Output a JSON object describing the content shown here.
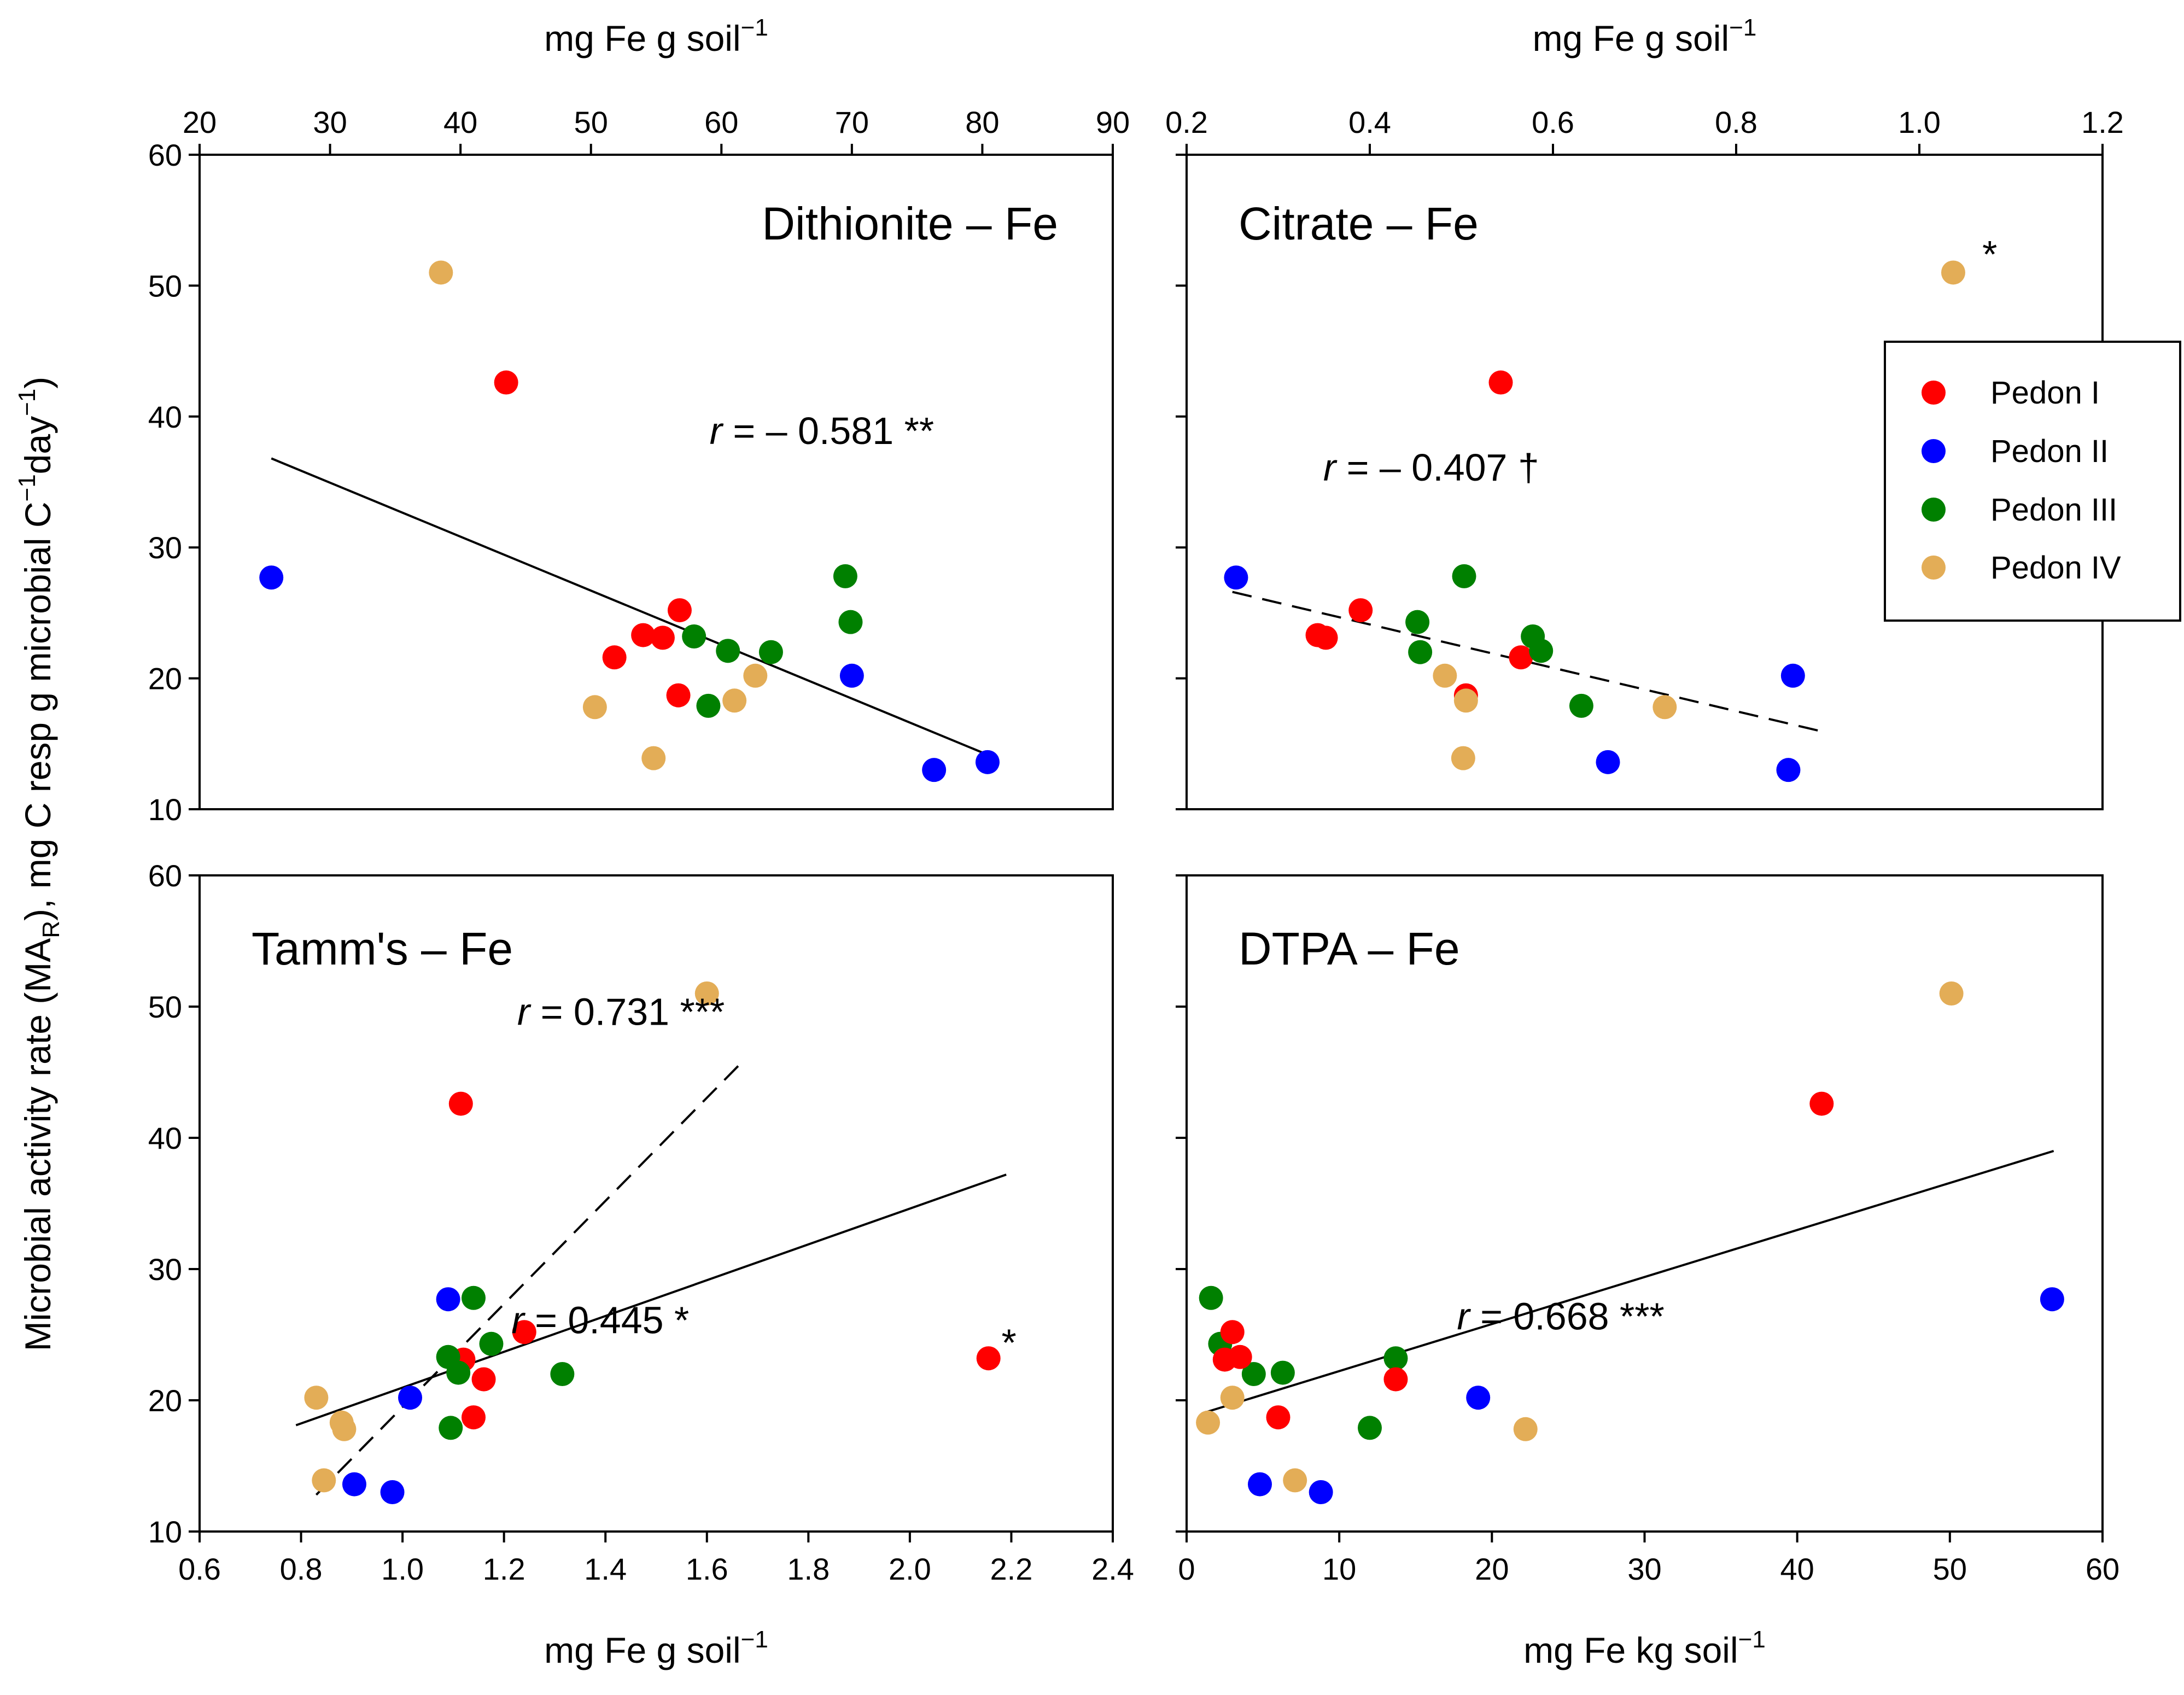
{
  "figure": {
    "y_axis_label": {
      "main": "Microbial activity rate (MA",
      "sub": "R",
      "rest": "), mg C resp g microbial  C",
      "sup1": "−1",
      "rest2": "day",
      "sup2": "−1",
      "end": ")"
    },
    "legend": [
      {
        "label": "Pedon I",
        "color": "#ff0000"
      },
      {
        "label": "Pedon II",
        "color": "#0000ff"
      },
      {
        "label": "Pedon III",
        "color": "#008000"
      },
      {
        "label": "Pedon IV",
        "color": "#e3ad57"
      }
    ]
  },
  "chart_data": [
    {
      "id": "dithionite",
      "type": "scatter",
      "title": "Dithionite – Fe",
      "xlabel": {
        "text": "mg Fe g soil",
        "sup": "−1"
      },
      "xlabel_position": "top",
      "xlim": [
        20,
        90
      ],
      "xticks": [
        20,
        30,
        40,
        50,
        60,
        70,
        80,
        90
      ],
      "ylim": [
        10,
        60
      ],
      "yticks": [
        10,
        20,
        30,
        40,
        50,
        60
      ],
      "show_y_labels": true,
      "points": [
        {
          "x": 25.5,
          "y": 27.7,
          "pedon": 1
        },
        {
          "x": 43.5,
          "y": 42.6,
          "pedon": 0
        },
        {
          "x": 38.5,
          "y": 51.0,
          "pedon": 3
        },
        {
          "x": 51.8,
          "y": 21.6,
          "pedon": 0
        },
        {
          "x": 54.0,
          "y": 23.3,
          "pedon": 0
        },
        {
          "x": 55.5,
          "y": 23.1,
          "pedon": 0
        },
        {
          "x": 56.8,
          "y": 25.2,
          "pedon": 0
        },
        {
          "x": 56.7,
          "y": 18.7,
          "pedon": 0
        },
        {
          "x": 57.9,
          "y": 23.2,
          "pedon": 2
        },
        {
          "x": 60.5,
          "y": 22.1,
          "pedon": 2
        },
        {
          "x": 63.8,
          "y": 22.0,
          "pedon": 2
        },
        {
          "x": 69.5,
          "y": 27.8,
          "pedon": 2
        },
        {
          "x": 69.9,
          "y": 24.3,
          "pedon": 2
        },
        {
          "x": 59.0,
          "y": 17.9,
          "pedon": 2
        },
        {
          "x": 50.3,
          "y": 17.8,
          "pedon": 3
        },
        {
          "x": 54.8,
          "y": 13.9,
          "pedon": 3
        },
        {
          "x": 61.0,
          "y": 18.3,
          "pedon": 3
        },
        {
          "x": 62.6,
          "y": 20.2,
          "pedon": 3
        },
        {
          "x": 70.0,
          "y": 20.2,
          "pedon": 1
        },
        {
          "x": 76.3,
          "y": 13.0,
          "pedon": 1
        },
        {
          "x": 80.4,
          "y": 13.6,
          "pedon": 1
        }
      ],
      "fits": [
        {
          "x1": 25.5,
          "y1": 36.8,
          "x2": 80.8,
          "y2": 14.0,
          "style": "solid"
        }
      ],
      "annotations": [
        {
          "text_r": "r",
          "text": " = – 0.581 **",
          "x": 76.3,
          "y": 37.9
        }
      ]
    },
    {
      "id": "citrate",
      "type": "scatter",
      "title": "Citrate – Fe",
      "xlabel": {
        "text": "mg Fe g soil",
        "sup": "−1"
      },
      "xlabel_position": "top",
      "xlim": [
        0.2,
        1.2
      ],
      "xticks": [
        0.2,
        0.4,
        0.6,
        0.8,
        1.0,
        1.2
      ],
      "ylim": [
        10,
        60
      ],
      "yticks": [
        10,
        20,
        30,
        40,
        50,
        60
      ],
      "show_y_labels": false,
      "points": [
        {
          "x": 0.254,
          "y": 27.7,
          "pedon": 1
        },
        {
          "x": 0.343,
          "y": 23.3,
          "pedon": 0
        },
        {
          "x": 0.352,
          "y": 23.1,
          "pedon": 0
        },
        {
          "x": 0.39,
          "y": 25.2,
          "pedon": 0
        },
        {
          "x": 0.543,
          "y": 42.6,
          "pedon": 0
        },
        {
          "x": 0.565,
          "y": 21.6,
          "pedon": 0
        },
        {
          "x": 0.505,
          "y": 18.7,
          "pedon": 0
        },
        {
          "x": 0.452,
          "y": 24.3,
          "pedon": 2
        },
        {
          "x": 0.455,
          "y": 22.0,
          "pedon": 2
        },
        {
          "x": 0.503,
          "y": 27.8,
          "pedon": 2
        },
        {
          "x": 0.578,
          "y": 23.2,
          "pedon": 2
        },
        {
          "x": 0.587,
          "y": 22.1,
          "pedon": 2
        },
        {
          "x": 0.631,
          "y": 17.9,
          "pedon": 2
        },
        {
          "x": 0.482,
          "y": 20.2,
          "pedon": 3
        },
        {
          "x": 0.505,
          "y": 18.3,
          "pedon": 3
        },
        {
          "x": 0.502,
          "y": 13.9,
          "pedon": 3
        },
        {
          "x": 0.722,
          "y": 17.8,
          "pedon": 3
        },
        {
          "x": 1.037,
          "y": 51.0,
          "pedon": 3
        },
        {
          "x": 0.66,
          "y": 13.6,
          "pedon": 1
        },
        {
          "x": 0.857,
          "y": 13.0,
          "pedon": 1
        },
        {
          "x": 0.862,
          "y": 20.2,
          "pedon": 1
        }
      ],
      "fits": [
        {
          "x1": 0.25,
          "y1": 26.6,
          "x2": 0.89,
          "y2": 16.0,
          "style": "dashed"
        }
      ],
      "annotations": [
        {
          "text_r": "r",
          "text": "  = – 0.407 †",
          "x": 0.585,
          "y": 35.1
        },
        {
          "text": "*",
          "x": 1.085,
          "y": 51.4
        }
      ],
      "legend": true
    },
    {
      "id": "tamm",
      "type": "scatter",
      "title": "Tamm's – Fe",
      "xlabel": {
        "text": "mg Fe g soil",
        "sup": "−1"
      },
      "xlabel_position": "bottom",
      "xlim": [
        0.6,
        2.4
      ],
      "xticks": [
        0.6,
        0.8,
        1.0,
        1.2,
        1.4,
        1.6,
        1.8,
        2.0,
        2.2,
        2.4
      ],
      "ylim": [
        10,
        60
      ],
      "yticks": [
        10,
        20,
        30,
        40,
        50,
        60
      ],
      "show_y_labels": true,
      "points": [
        {
          "x": 0.83,
          "y": 20.2,
          "pedon": 3
        },
        {
          "x": 0.88,
          "y": 18.3,
          "pedon": 3
        },
        {
          "x": 0.885,
          "y": 17.8,
          "pedon": 3
        },
        {
          "x": 0.845,
          "y": 13.9,
          "pedon": 3
        },
        {
          "x": 1.6,
          "y": 51.0,
          "pedon": 3
        },
        {
          "x": 0.905,
          "y": 13.6,
          "pedon": 1
        },
        {
          "x": 0.98,
          "y": 13.0,
          "pedon": 1
        },
        {
          "x": 1.015,
          "y": 20.2,
          "pedon": 1
        },
        {
          "x": 1.09,
          "y": 27.7,
          "pedon": 1
        },
        {
          "x": 1.115,
          "y": 42.6,
          "pedon": 0
        },
        {
          "x": 1.12,
          "y": 23.1,
          "pedon": 0
        },
        {
          "x": 1.14,
          "y": 18.7,
          "pedon": 0
        },
        {
          "x": 1.16,
          "y": 21.6,
          "pedon": 0
        },
        {
          "x": 1.24,
          "y": 25.2,
          "pedon": 0
        },
        {
          "x": 2.155,
          "y": 23.2,
          "pedon": 0
        },
        {
          "x": 1.09,
          "y": 23.3,
          "pedon": 2
        },
        {
          "x": 1.11,
          "y": 22.1,
          "pedon": 2
        },
        {
          "x": 1.14,
          "y": 27.8,
          "pedon": 2
        },
        {
          "x": 1.175,
          "y": 24.3,
          "pedon": 2
        },
        {
          "x": 1.095,
          "y": 17.9,
          "pedon": 2
        },
        {
          "x": 1.315,
          "y": 22.0,
          "pedon": 2
        }
      ],
      "fits": [
        {
          "x1": 0.79,
          "y1": 18.1,
          "x2": 2.19,
          "y2": 37.2,
          "style": "solid"
        },
        {
          "x1": 0.83,
          "y1": 12.8,
          "x2": 1.675,
          "y2": 46.0,
          "style": "dashed"
        }
      ],
      "annotations": [
        {
          "text_r": "r",
          "text": " = 0.731 ***",
          "x": 1.635,
          "y": 48.6
        },
        {
          "text_r": "r",
          "text": " = 0.445 *",
          "x": 1.565,
          "y": 25.1
        },
        {
          "text": "*",
          "x": 2.21,
          "y": 23.4
        }
      ]
    },
    {
      "id": "dtpa",
      "type": "scatter",
      "title": "DTPA – Fe",
      "xlabel": {
        "text": "mg Fe kg soil",
        "sup": "−1"
      },
      "xlabel_position": "bottom",
      "xlim": [
        0,
        60
      ],
      "xticks": [
        0,
        10,
        20,
        30,
        40,
        50,
        60
      ],
      "ylim": [
        10,
        60
      ],
      "yticks": [
        10,
        20,
        30,
        40,
        50,
        60
      ],
      "show_y_labels": false,
      "points": [
        {
          "x": 1.6,
          "y": 27.8,
          "pedon": 2
        },
        {
          "x": 2.2,
          "y": 24.3,
          "pedon": 2
        },
        {
          "x": 4.4,
          "y": 22.0,
          "pedon": 2
        },
        {
          "x": 6.3,
          "y": 22.1,
          "pedon": 2
        },
        {
          "x": 12.0,
          "y": 17.9,
          "pedon": 2
        },
        {
          "x": 13.7,
          "y": 23.2,
          "pedon": 2
        },
        {
          "x": 3.0,
          "y": 25.2,
          "pedon": 0
        },
        {
          "x": 2.5,
          "y": 23.1,
          "pedon": 0
        },
        {
          "x": 3.5,
          "y": 23.3,
          "pedon": 0
        },
        {
          "x": 6.0,
          "y": 18.7,
          "pedon": 0
        },
        {
          "x": 13.7,
          "y": 21.6,
          "pedon": 0
        },
        {
          "x": 41.6,
          "y": 42.6,
          "pedon": 0
        },
        {
          "x": 1.4,
          "y": 18.3,
          "pedon": 3
        },
        {
          "x": 3.0,
          "y": 20.2,
          "pedon": 3
        },
        {
          "x": 7.1,
          "y": 13.9,
          "pedon": 3
        },
        {
          "x": 22.2,
          "y": 17.8,
          "pedon": 3
        },
        {
          "x": 50.1,
          "y": 51.0,
          "pedon": 3
        },
        {
          "x": 4.8,
          "y": 13.6,
          "pedon": 1
        },
        {
          "x": 8.8,
          "y": 13.0,
          "pedon": 1
        },
        {
          "x": 19.1,
          "y": 20.2,
          "pedon": 1
        },
        {
          "x": 56.7,
          "y": 27.7,
          "pedon": 1
        }
      ],
      "fits": [
        {
          "x1": 1.0,
          "y1": 19.0,
          "x2": 56.8,
          "y2": 39.0,
          "style": "solid"
        }
      ],
      "annotations": [
        {
          "text_r": "r",
          "text": " = 0.668 ***",
          "x": 31.3,
          "y": 25.4
        }
      ]
    }
  ]
}
